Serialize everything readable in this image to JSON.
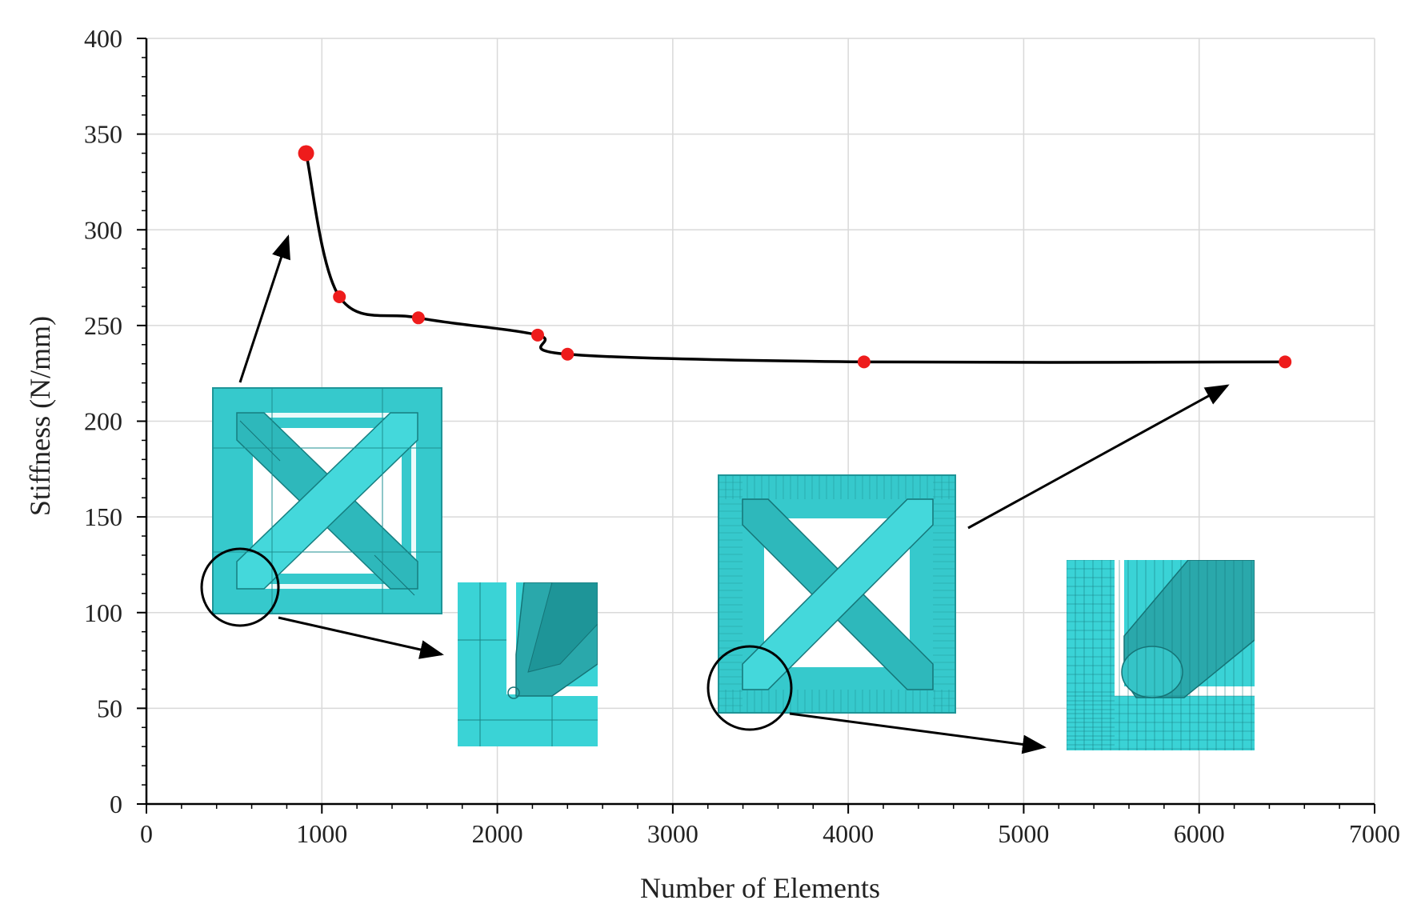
{
  "chart_data": {
    "type": "line",
    "title": "",
    "xlabel": "Number of Elements",
    "ylabel": "Stiffness (N/mm)",
    "xlim": [
      0,
      7000
    ],
    "ylim": [
      0,
      400
    ],
    "x_ticks": [
      "0",
      "1000",
      "2000",
      "3000",
      "4000",
      "5000",
      "6000",
      "7000"
    ],
    "y_ticks": [
      "0",
      "50",
      "100",
      "150",
      "200",
      "250",
      "300",
      "350",
      "400"
    ],
    "grid": true,
    "legend": "none",
    "series": [
      {
        "x": [
          910,
          1100,
          1550,
          2230,
          2400,
          4090,
          6490
        ],
        "y": [
          340,
          265,
          254,
          245,
          235,
          231,
          231
        ],
        "marker_color": "#ee1c1c",
        "line_color": "#000000"
      }
    ],
    "annotations": [
      {
        "description": "coarse-mesh lattice cell inset",
        "points_to_x": 910,
        "points_to_y": 340
      },
      {
        "description": "coarse-mesh corner detail inset"
      },
      {
        "description": "fine-mesh lattice cell inset",
        "points_to_x": 6490,
        "points_to_y": 231
      },
      {
        "description": "fine-mesh corner detail inset"
      }
    ],
    "mesh_color": "#3ad3d6"
  }
}
